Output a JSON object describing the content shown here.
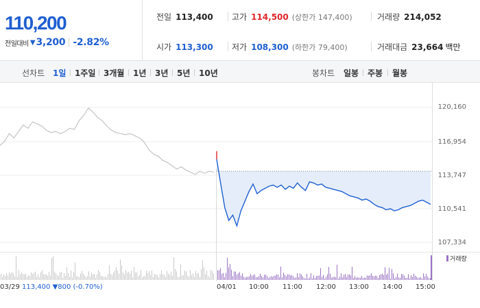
{
  "price": {
    "current": "110,200",
    "change_label": "전일대비",
    "change_abs": "3,200",
    "change_pct": "-2.82%",
    "direction_icon": "down-triangle-icon"
  },
  "stats": {
    "prev_close": {
      "label": "전일",
      "value": "113,400"
    },
    "high": {
      "label": "고가",
      "value": "114,500",
      "sub": "(상한가 147,400)"
    },
    "volume": {
      "label": "거래량",
      "value": "214,052"
    },
    "open": {
      "label": "시가",
      "value": "113,300"
    },
    "low": {
      "label": "저가",
      "value": "108,300",
      "sub": "(하한가 79,400)"
    },
    "trade_value": {
      "label": "거래대금",
      "value": "23,664",
      "unit": "백만"
    }
  },
  "toolbar": {
    "line_chart_label": "선차트",
    "periods": [
      "1일",
      "1주일",
      "3개월",
      "1년",
      "3년",
      "5년",
      "10년"
    ],
    "active_period": "1일",
    "candle_chart_label": "봉차트",
    "candle_periods": [
      "일봉",
      "주봉",
      "월봉"
    ]
  },
  "chart_data": {
    "type": "line",
    "y_ticks": [
      "120,160",
      "116,954",
      "113,747",
      "110,541",
      "107,334"
    ],
    "ylim": [
      106000,
      121000
    ],
    "x_ticks": [
      "04/01",
      "10:00",
      "11:00",
      "12:00",
      "13:00",
      "14:00",
      "15:00"
    ],
    "prev_day_info": {
      "date": "03/29",
      "close": "113,400",
      "change": "▼800",
      "change_pct": "(-0.70%)"
    },
    "prev_close_ref": 113400,
    "volume_legend": "거래량",
    "colors": {
      "today_line": "#1f5fd1",
      "prev_line": "#c8c8c8",
      "fill": "#e4edf9",
      "volume": "#9a72c4",
      "prev_volume": "#c8c8c8"
    },
    "series": [
      {
        "values_prev_day": [
          115800,
          116200,
          116900,
          116500,
          117100,
          117700,
          117400,
          118000,
          117800,
          117600,
          117200,
          117000,
          117100,
          116900,
          117100,
          117400,
          117300,
          118100,
          118600,
          119300,
          118900,
          118400,
          118100,
          117600,
          117200,
          117000,
          116900,
          116800,
          116900,
          116700,
          116500,
          116100,
          115400,
          115000,
          114800,
          114400,
          114200,
          113900,
          113600,
          113800,
          113500,
          113300,
          113100,
          113400,
          113200,
          113400,
          113300
        ]
      },
      {
        "values_today": [
          114500,
          112200,
          110000,
          108800,
          109300,
          108300,
          109700,
          110600,
          111500,
          112200,
          111300,
          111600,
          111800,
          112000,
          112100,
          111900,
          112100,
          111700,
          112000,
          111800,
          112300,
          111900,
          111600,
          112400,
          112300,
          112100,
          112200,
          111900,
          111800,
          111700,
          111600,
          111500,
          111300,
          111100,
          111000,
          110900,
          110700,
          110800,
          110600,
          110300,
          110100,
          110000,
          109800,
          109900,
          109700,
          109800,
          110000,
          110100,
          110200,
          110400,
          110600,
          110700,
          110500,
          110300
        ]
      }
    ]
  }
}
